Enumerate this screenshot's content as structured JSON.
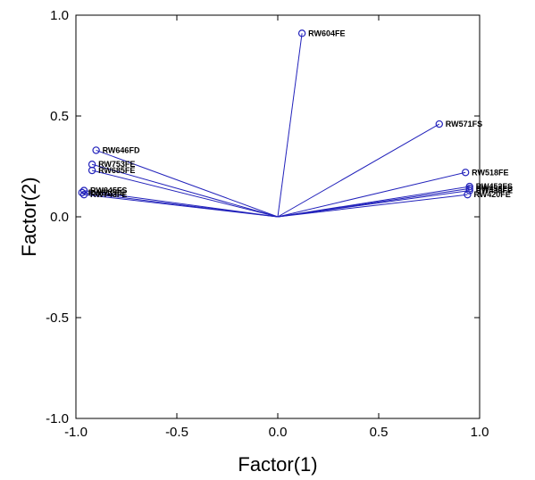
{
  "chart_data": {
    "type": "scatter",
    "xlabel": "Factor(1)",
    "ylabel": "Factor(2)",
    "xlim": [
      -1.0,
      1.0
    ],
    "ylim": [
      -1.0,
      1.0
    ],
    "xticks": [
      "-1.0",
      "-0.5",
      "0.0",
      "0.5",
      "1.0"
    ],
    "yticks": [
      "-1.0",
      "-0.5",
      "0.0",
      "0.5",
      "1.0"
    ],
    "grid": false,
    "legend": "none",
    "origin": [
      0.0,
      0.0
    ],
    "colors": {
      "line": "#2222bb",
      "marker": "#2222bb",
      "frame": "#000000"
    },
    "points": [
      {
        "label": "RW604FE",
        "x": 0.12,
        "y": 0.91
      },
      {
        "label": "RW571FS",
        "x": 0.8,
        "y": 0.46
      },
      {
        "label": "RW518FE",
        "x": 0.93,
        "y": 0.22
      },
      {
        "label": "RW452FS",
        "x": 0.95,
        "y": 0.15
      },
      {
        "label": "RW458FS",
        "x": 0.95,
        "y": 0.14
      },
      {
        "label": "RW436FE",
        "x": 0.95,
        "y": 0.13
      },
      {
        "label": "RW420FE",
        "x": 0.94,
        "y": 0.11
      },
      {
        "label": "RW646FD",
        "x": -0.9,
        "y": 0.33
      },
      {
        "label": "RW753FE",
        "x": -0.92,
        "y": 0.26
      },
      {
        "label": "RW685FE",
        "x": -0.92,
        "y": 0.23
      },
      {
        "label": "RW845FS",
        "x": -0.96,
        "y": 0.13
      },
      {
        "label": "RW612FE",
        "x": -0.97,
        "y": 0.12
      },
      {
        "label": "RW743FE",
        "x": -0.96,
        "y": 0.11
      }
    ]
  }
}
